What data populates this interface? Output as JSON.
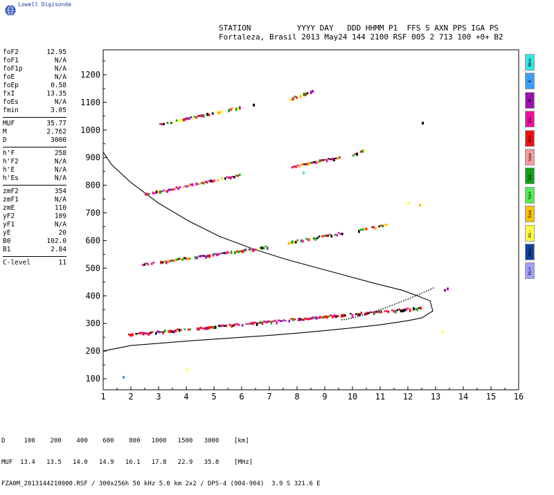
{
  "app": {
    "logo_text": "Lowell Digisonde"
  },
  "header": {
    "labels_line": "STATION          YYYY DAY   DDD HHMM P1  FFS S AXN PPS IGA PS",
    "values_line": "Fortaleza, Brasil 2013 May24 144 2100 RSF 005 2 713 100 +0+ B2"
  },
  "params": {
    "group1": [
      {
        "k": "foF2",
        "v": "12.95"
      },
      {
        "k": "foF1",
        "v": "N/A"
      },
      {
        "k": "foF1p",
        "v": "N/A"
      },
      {
        "k": "foE",
        "v": "N/A"
      },
      {
        "k": "foEp",
        "v": "0.58"
      },
      {
        "k": "fxI",
        "v": "13.35"
      },
      {
        "k": "foEs",
        "v": "N/A"
      },
      {
        "k": "fmin",
        "v": "3.05"
      }
    ],
    "group2": [
      {
        "k": "MUF",
        "v": "35.77"
      },
      {
        "k": "M",
        "v": "2.762"
      },
      {
        "k": "D",
        "v": "3000"
      }
    ],
    "group3": [
      {
        "k": "h'F",
        "v": "258"
      },
      {
        "k": "h'F2",
        "v": "N/A"
      },
      {
        "k": "h'E",
        "v": "N/A"
      },
      {
        "k": "h'Es",
        "v": "N/A"
      }
    ],
    "group4": [
      {
        "k": "zmF2",
        "v": "354"
      },
      {
        "k": "zmF1",
        "v": "N/A"
      },
      {
        "k": "zmE",
        "v": "110"
      },
      {
        "k": "yF2",
        "v": "109"
      },
      {
        "k": "yF1",
        "v": "N/A"
      },
      {
        "k": "yE",
        "v": "20"
      },
      {
        "k": "B0",
        "v": "102.0"
      },
      {
        "k": "B1",
        "v": "2.84"
      }
    ],
    "group5": [
      {
        "k": "C-level",
        "v": "11"
      }
    ]
  },
  "legend": [
    {
      "label": "Nne",
      "color": "#30e8e8"
    },
    {
      "label": "E",
      "color": "#3aa0ff"
    },
    {
      "label": "W",
      "color": "#9a10b0"
    },
    {
      "label": "Vo-",
      "color": "#f010a0"
    },
    {
      "label": "Vo+",
      "color": "#f01010"
    },
    {
      "label": "Sew",
      "color": "#ff9a9a"
    },
    {
      "label": "Vo-",
      "color": "#10a010"
    },
    {
      "label": "Vo+",
      "color": "#50f050"
    },
    {
      "label": "Sse",
      "color": "#ffc000"
    },
    {
      "label": "Hi-",
      "color": "#ffff40"
    },
    {
      "label": "Nww",
      "color": "#1040a0"
    },
    {
      "label": "Hi+",
      "color": "#a0a0ff"
    }
  ],
  "bottom": {
    "d_row": "D     100    200    400    600    800   1000   1500   3000    [km]",
    "muf_row": "MUF  13.4   13.5   14.0   14.9   16.1   17.8   22.9   35.8    [MHz]",
    "file_row": "FZA0M_2013144210000.RSF / 300x256h 50 kHz 5.0 km 2x2 / DPS-4 (904-904)  3.9 S 321.6 E"
  },
  "chart_data": {
    "type": "scatter",
    "title": "",
    "xlabel": "",
    "ylabel": "",
    "xlim": [
      1,
      16
    ],
    "ylim": [
      60,
      1290
    ],
    "x_ticks": [
      1,
      2,
      3,
      4,
      5,
      6,
      7,
      8,
      9,
      10,
      11,
      12,
      13,
      14,
      15,
      16
    ],
    "y_ticks": [
      100,
      200,
      300,
      400,
      500,
      600,
      700,
      800,
      900,
      1000,
      1100,
      1200
    ],
    "profile_curve": {
      "name": "",
      "x": [
        0.7,
        2,
        3,
        4,
        5,
        6,
        7,
        8,
        9,
        10,
        11,
        12,
        12.5,
        12.9,
        12.8,
        12.4,
        11.8,
        10.8,
        9.8,
        8.7,
        7.6,
        6.4,
        5.2,
        4.1,
        3.0,
        2.0,
        1.3,
        1.0
      ],
      "y": [
        200,
        220,
        228,
        236,
        243,
        250,
        257,
        265,
        274,
        284,
        295,
        310,
        320,
        345,
        382,
        398,
        420,
        445,
        472,
        502,
        532,
        570,
        615,
        670,
        735,
        810,
        875,
        920
      ]
    },
    "traces": [
      {
        "x0": 1.9,
        "x1": 12.5,
        "h0": 258,
        "h1": 355,
        "color_set": "o1"
      },
      {
        "x0": 2.4,
        "x1": 6.9,
        "h0": 512,
        "h1": 575,
        "color_set": "o2"
      },
      {
        "x0": 7.6,
        "x1": 9.6,
        "h0": 590,
        "h1": 625,
        "color_set": "o2"
      },
      {
        "x0": 10.2,
        "x1": 11.2,
        "h0": 635,
        "h1": 655,
        "color_set": "o2"
      },
      {
        "x0": 2.5,
        "x1": 5.9,
        "h0": 765,
        "h1": 835,
        "color_set": "o3"
      },
      {
        "x0": 7.8,
        "x1": 9.5,
        "h0": 866,
        "h1": 900,
        "color_set": "o3"
      },
      {
        "x0": 2.9,
        "x1": 5.9,
        "h0": 1015,
        "h1": 1080,
        "color_set": "o4"
      },
      {
        "x0": 7.7,
        "x1": 8.6,
        "h0": 1110,
        "h1": 1140,
        "color_set": "o4"
      },
      {
        "x0": 10.0,
        "x1": 10.4,
        "h0": 910,
        "h1": 925,
        "color_set": "o4"
      }
    ],
    "x_trace": {
      "x0": 9.6,
      "x1": 12.9,
      "h0": 315,
      "h1": 430
    },
    "extra_points": [
      {
        "x": 1.7,
        "y": 105,
        "c": "#3aa0ff"
      },
      {
        "x": 4.0,
        "y": 132,
        "c": "#ffff40"
      },
      {
        "x": 12.4,
        "y": 728,
        "c": "#ffc000"
      },
      {
        "x": 12.0,
        "y": 735,
        "c": "#ffff40"
      },
      {
        "x": 12.5,
        "y": 1025,
        "c": "#000000"
      },
      {
        "x": 6.4,
        "y": 1090,
        "c": "#000000"
      },
      {
        "x": 13.3,
        "y": 420,
        "c": "#9a10b0"
      },
      {
        "x": 13.4,
        "y": 425,
        "c": "#9a10b0"
      },
      {
        "x": 13.2,
        "y": 270,
        "c": "#ffff40"
      },
      {
        "x": 8.2,
        "y": 845,
        "c": "#30e8e8"
      }
    ]
  }
}
